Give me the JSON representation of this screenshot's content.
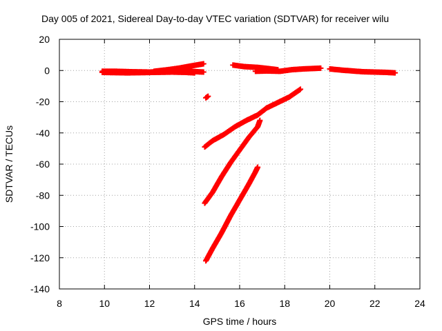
{
  "chart_data": {
    "type": "scatter",
    "title": "Day 005 of 2021, Sidereal Day-to-day VTEC variation (SDTVAR) for receiver wilu",
    "xlabel": "GPS time / hours",
    "ylabel": "SDTVAR / TECUs",
    "xlim": [
      8,
      24
    ],
    "ylim": [
      -140,
      20
    ],
    "xticks": [
      "8",
      "10",
      "12",
      "14",
      "16",
      "18",
      "20",
      "22",
      "24"
    ],
    "yticks": [
      "20",
      "0",
      "-20",
      "-40",
      "-60",
      "-80",
      "-100",
      "-120",
      "-140"
    ],
    "grid": true,
    "marker": "plus",
    "color": "#ff0000",
    "series": [
      {
        "points": [
          [
            9.9,
            -0.5
          ],
          [
            10.5,
            -0.5
          ],
          [
            11.2,
            -0.8
          ],
          [
            12.0,
            -1.0
          ],
          [
            12.8,
            -0.5
          ],
          [
            13.5,
            -0.3
          ],
          [
            14.4,
            -1.0
          ]
        ]
      },
      {
        "points": [
          [
            9.9,
            -1.2
          ],
          [
            11.0,
            -1.5
          ],
          [
            12.2,
            -1.2
          ],
          [
            13.0,
            -1.0
          ],
          [
            13.6,
            -1.2
          ],
          [
            14.0,
            -1.5
          ]
        ]
      },
      {
        "points": [
          [
            12.2,
            -0.5
          ],
          [
            12.8,
            0.5
          ],
          [
            13.3,
            1.5
          ],
          [
            13.8,
            2.8
          ],
          [
            14.2,
            3.8
          ],
          [
            14.4,
            4.3
          ]
        ]
      },
      {
        "points": [
          [
            14.5,
            -17.5
          ],
          [
            14.6,
            -16.5
          ]
        ]
      },
      {
        "points": [
          [
            15.7,
            3.5
          ],
          [
            16.2,
            2.5
          ],
          [
            16.8,
            2.0
          ],
          [
            17.3,
            1.2
          ],
          [
            17.7,
            0.5
          ]
        ]
      },
      {
        "points": [
          [
            16.7,
            -0.5
          ],
          [
            17.2,
            -0.3
          ],
          [
            17.8,
            -0.5
          ],
          [
            18.3,
            0.5
          ],
          [
            18.8,
            1.0
          ],
          [
            19.3,
            1.3
          ],
          [
            19.6,
            1.5
          ]
        ]
      },
      {
        "points": [
          [
            20.0,
            1.0
          ],
          [
            20.5,
            0.3
          ],
          [
            21.0,
            -0.3
          ],
          [
            21.5,
            -0.8
          ],
          [
            22.0,
            -1.0
          ],
          [
            22.5,
            -1.2
          ],
          [
            22.9,
            -1.5
          ]
        ]
      },
      {
        "points": [
          [
            14.45,
            -49
          ],
          [
            14.8,
            -45
          ],
          [
            15.3,
            -41
          ],
          [
            15.8,
            -36
          ],
          [
            16.3,
            -32
          ],
          [
            16.8,
            -28.5
          ],
          [
            17.2,
            -24
          ],
          [
            17.7,
            -20.5
          ],
          [
            18.2,
            -17
          ],
          [
            18.7,
            -12
          ]
        ]
      },
      {
        "points": [
          [
            14.45,
            -85
          ],
          [
            14.8,
            -78
          ],
          [
            15.2,
            -68
          ],
          [
            15.6,
            -59
          ],
          [
            16.0,
            -51
          ],
          [
            16.4,
            -43
          ],
          [
            16.8,
            -36
          ],
          [
            16.9,
            -32
          ]
        ]
      },
      {
        "points": [
          [
            14.5,
            -122
          ],
          [
            14.8,
            -114
          ],
          [
            15.2,
            -104
          ],
          [
            15.6,
            -93
          ],
          [
            16.0,
            -83
          ],
          [
            16.4,
            -73
          ],
          [
            16.7,
            -65
          ],
          [
            16.8,
            -62
          ]
        ]
      }
    ]
  }
}
